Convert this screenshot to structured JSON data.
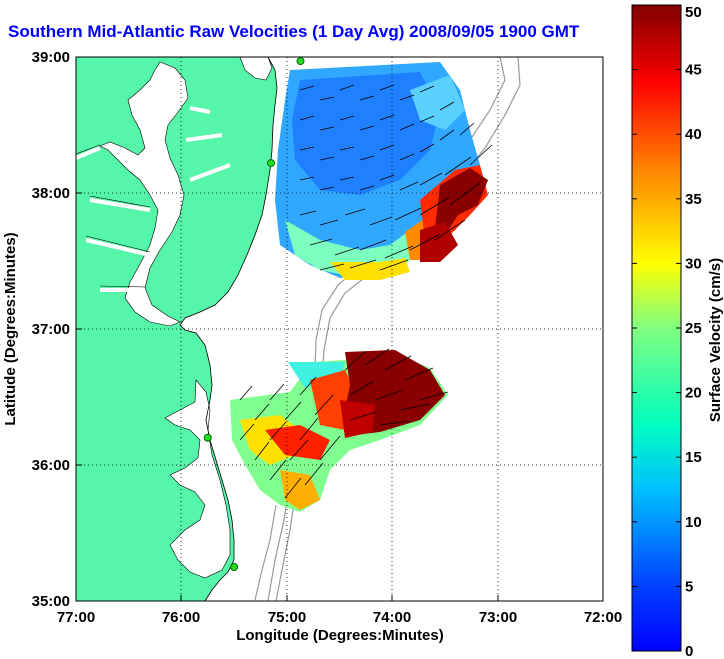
{
  "title": "Southern Mid-Atlantic Raw Velocities (1 Day Avg) 2008/09/05 1900 GMT",
  "map": {
    "xlabel": "Longitude (Degrees:Minutes)",
    "ylabel": "Latitude (Degrees:Minutes)",
    "x_ticks": [
      "77:00",
      "76:00",
      "75:00",
      "74:00",
      "73:00",
      "72:00"
    ],
    "y_ticks": [
      "39:00",
      "38:00",
      "37:00",
      "36:00",
      "35:00"
    ],
    "x_range": [
      -77,
      -72
    ],
    "y_range": [
      35,
      39
    ],
    "land_color": "#55f5aa",
    "grid": "dotted"
  },
  "colorbar": {
    "label": "Surface Velocity (cm/s)",
    "ticks": [
      "50",
      "45",
      "40",
      "35",
      "30",
      "25",
      "20",
      "15",
      "10",
      "5",
      "0"
    ],
    "range": [
      0,
      50
    ],
    "colormap": "jet"
  },
  "stations": [
    {
      "lon": -74.87,
      "lat": 38.97
    },
    {
      "lon": -75.15,
      "lat": 38.22
    },
    {
      "lon": -75.75,
      "lat": 36.2
    },
    {
      "lon": -75.5,
      "lat": 35.25
    }
  ]
}
